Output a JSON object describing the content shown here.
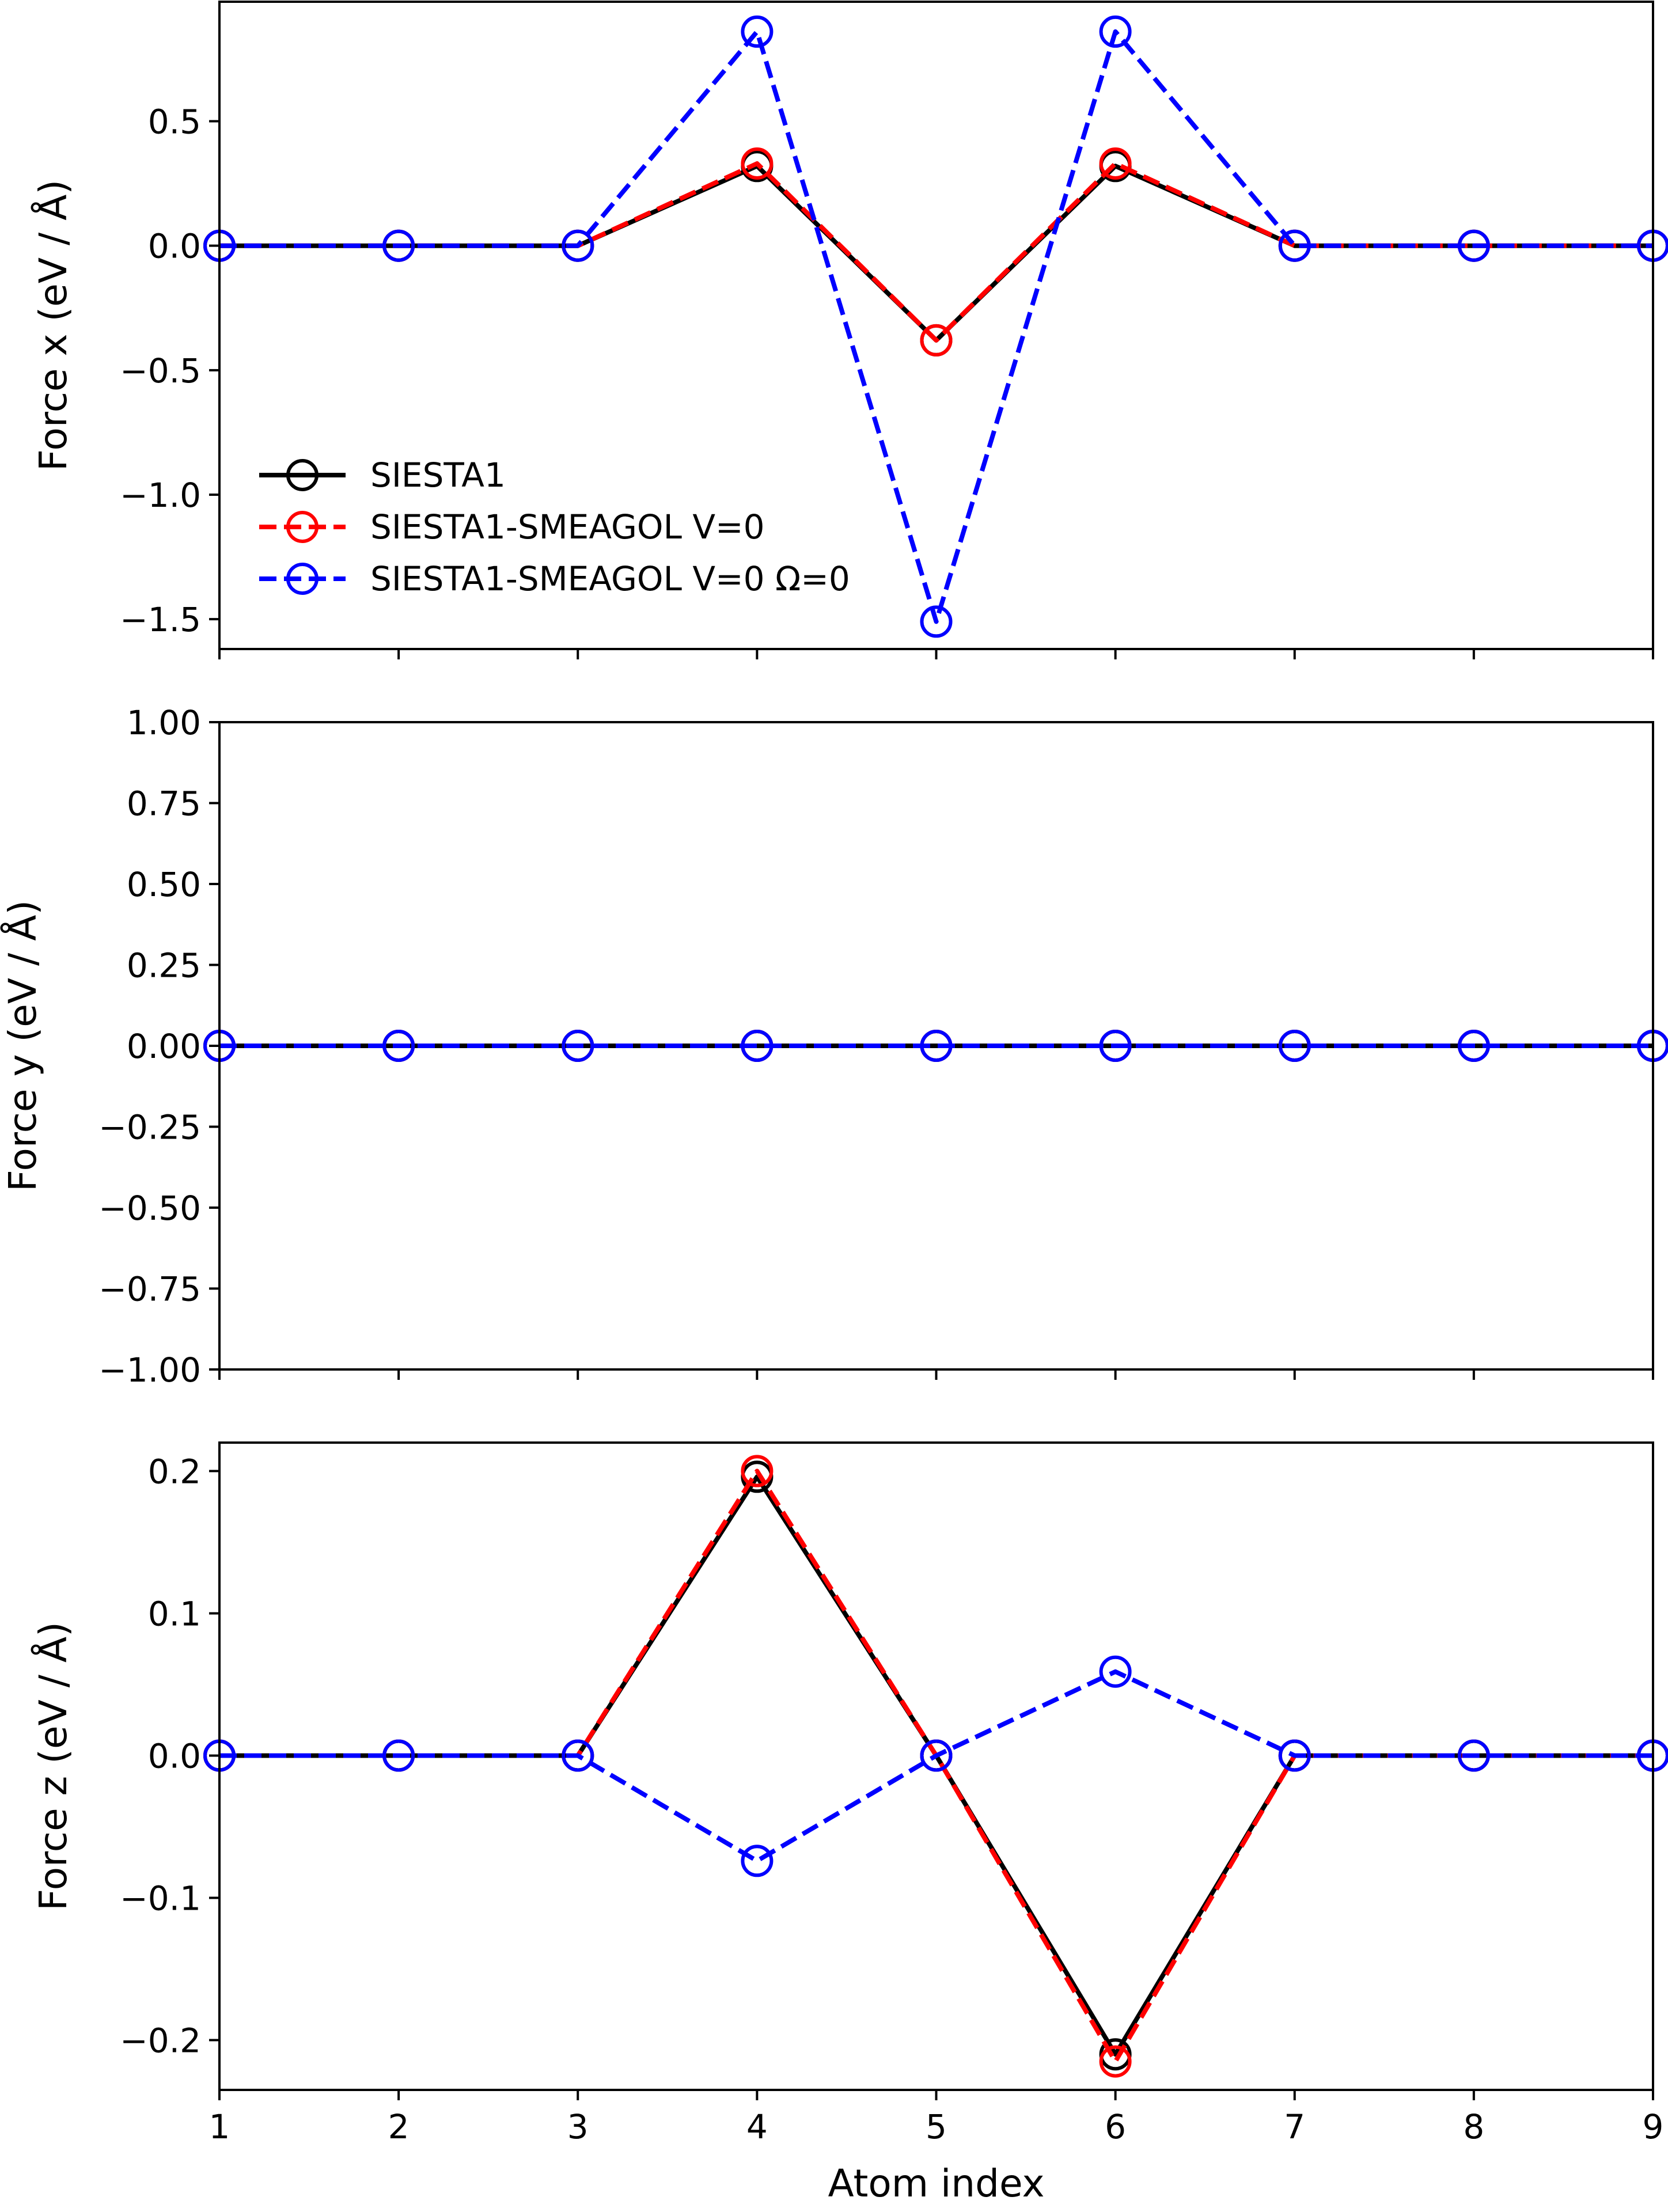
{
  "chart_data": [
    {
      "type": "line",
      "ylabel": "Force x (eV / Å)",
      "xlim": [
        1,
        9
      ],
      "ylim": [
        -1.62,
        0.98
      ],
      "xticks": [
        1,
        2,
        3,
        4,
        5,
        6,
        7,
        8,
        9
      ],
      "xtick_labels": [],
      "yticks": [
        -1.5,
        -1.0,
        -0.5,
        0.0,
        0.5
      ],
      "ytick_labels": [
        "−1.5",
        "−1.0",
        "−0.5",
        "0.0",
        "0.5"
      ],
      "x": [
        1,
        2,
        3,
        4,
        5,
        6,
        7,
        8,
        9
      ],
      "legend": "lower-left",
      "series": [
        {
          "name": "SIESTA1",
          "color": "#000000",
          "dashed": false,
          "values": [
            0,
            0,
            0,
            0.32,
            -0.38,
            0.32,
            0,
            0,
            0
          ]
        },
        {
          "name": "SIESTA1-SMEAGOL V=0",
          "color": "#ff0000",
          "dashed": true,
          "values": [
            0,
            0,
            0,
            0.33,
            -0.38,
            0.33,
            0,
            0,
            0
          ]
        },
        {
          "name": "SIESTA1-SMEAGOL V=0 Ω=0",
          "color": "#0000ff",
          "dashed": true,
          "values": [
            0,
            0,
            0,
            0.86,
            -1.51,
            0.86,
            0,
            0,
            0
          ]
        }
      ]
    },
    {
      "type": "line",
      "ylabel": "Force y (eV / Å)",
      "xlim": [
        1,
        9
      ],
      "ylim": [
        -1.0,
        1.0
      ],
      "xticks": [
        1,
        2,
        3,
        4,
        5,
        6,
        7,
        8,
        9
      ],
      "xtick_labels": [],
      "yticks": [
        -1.0,
        -0.75,
        -0.5,
        -0.25,
        0.0,
        0.25,
        0.5,
        0.75,
        1.0
      ],
      "ytick_labels": [
        "−1.00",
        "−0.75",
        "−0.50",
        "−0.25",
        "0.00",
        "0.25",
        "0.50",
        "0.75",
        "1.00"
      ],
      "x": [
        1,
        2,
        3,
        4,
        5,
        6,
        7,
        8,
        9
      ],
      "series": [
        {
          "color": "#000000",
          "dashed": false,
          "values": [
            0,
            0,
            0,
            0,
            0,
            0,
            0,
            0,
            0
          ]
        },
        {
          "color": "#ff0000",
          "dashed": true,
          "values": [
            0,
            0,
            0,
            0,
            0,
            0,
            0,
            0,
            0
          ]
        },
        {
          "color": "#0000ff",
          "dashed": true,
          "values": [
            0,
            0,
            0,
            0,
            0,
            0,
            0,
            0,
            0
          ]
        }
      ]
    },
    {
      "type": "line",
      "xlabel": "Atom index",
      "ylabel": "Force z (eV / Å)",
      "xlim": [
        1,
        9
      ],
      "ylim": [
        -0.235,
        0.22
      ],
      "xticks": [
        1,
        2,
        3,
        4,
        5,
        6,
        7,
        8,
        9
      ],
      "xtick_labels": [
        "1",
        "2",
        "3",
        "4",
        "5",
        "6",
        "7",
        "8",
        "9"
      ],
      "yticks": [
        -0.2,
        -0.1,
        0.0,
        0.1,
        0.2
      ],
      "ytick_labels": [
        "−0.2",
        "−0.1",
        "0.0",
        "0.1",
        "0.2"
      ],
      "x": [
        1,
        2,
        3,
        4,
        5,
        6,
        7,
        8,
        9
      ],
      "series": [
        {
          "color": "#000000",
          "dashed": false,
          "values": [
            0,
            0,
            0,
            0.196,
            0,
            -0.21,
            0,
            0,
            0
          ]
        },
        {
          "color": "#ff0000",
          "dashed": true,
          "values": [
            0,
            0,
            0,
            0.2,
            0,
            -0.215,
            0,
            0,
            0
          ]
        },
        {
          "color": "#0000ff",
          "dashed": true,
          "values": [
            0,
            0,
            0,
            -0.074,
            0,
            0.059,
            0,
            0,
            0
          ]
        }
      ]
    }
  ]
}
